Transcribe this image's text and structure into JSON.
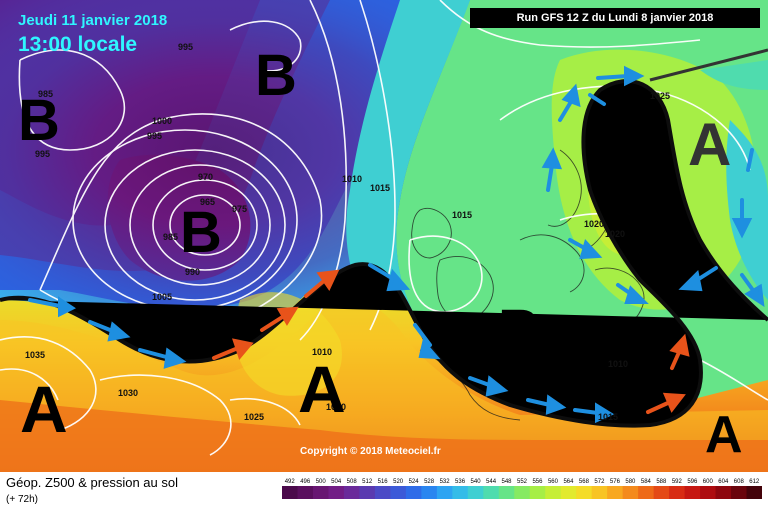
{
  "header": {
    "date": "Jeudi 11 janvier 2018",
    "time": "13:00 locale",
    "run": "Run GFS 12 Z du Lundi 8 janvier 2018"
  },
  "footer": {
    "title": "Géop. Z500 & pression au sol",
    "lead": "(+ 72h)",
    "copyright": "Copyright © 2018 Meteociel.fr"
  },
  "pressure_systems": [
    {
      "label": "B",
      "kind": "low"
    },
    {
      "label": "B",
      "kind": "low"
    },
    {
      "label": "B",
      "kind": "low"
    },
    {
      "label": "B",
      "kind": "low"
    },
    {
      "label": "A",
      "kind": "high"
    },
    {
      "label": "A",
      "kind": "high"
    },
    {
      "label": "A",
      "kind": "high"
    },
    {
      "label": "A",
      "kind": "high"
    },
    {
      "label": "A",
      "kind": "high"
    }
  ],
  "isobar_labels": [
    "995",
    "985",
    "995",
    "1000",
    "995",
    "970",
    "965",
    "975",
    "985",
    "990",
    "1005",
    "1010",
    "1015",
    "1015",
    "1025",
    "1020",
    "1020",
    "1035",
    "1030",
    "1025",
    "1030",
    "1010",
    "1015",
    "1010"
  ],
  "legend": {
    "values": [
      "492",
      "496",
      "500",
      "504",
      "508",
      "512",
      "516",
      "520",
      "524",
      "528",
      "532",
      "536",
      "540",
      "544",
      "548",
      "552",
      "556",
      "560",
      "564",
      "568",
      "572",
      "576",
      "580",
      "584",
      "588",
      "592",
      "596",
      "600",
      "604",
      "608",
      "612"
    ],
    "colors": [
      "#4b0a4b",
      "#5a0f5e",
      "#681672",
      "#721d86",
      "#6a2a9a",
      "#5a3ab0",
      "#4b4ac6",
      "#3c5ad8",
      "#2f6ce8",
      "#2a86f0",
      "#2ea4f2",
      "#34bce8",
      "#3fcfd2",
      "#4fdcae",
      "#66e488",
      "#86ea62",
      "#a6ee46",
      "#c6ee36",
      "#e2ea2e",
      "#f4dc28",
      "#f8c424",
      "#f8a820",
      "#f48a1c",
      "#ee6a18",
      "#e44a16",
      "#d82c14",
      "#c61812",
      "#ae0c10",
      "#8e060e",
      "#6a040c",
      "#44020a"
    ]
  }
}
